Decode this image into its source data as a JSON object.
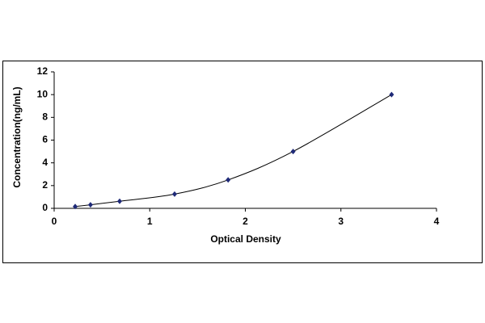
{
  "chart_data": {
    "type": "scatter",
    "x_label": "Optical Density",
    "y_label": "Concentration(ng/mL)",
    "series": [
      {
        "color": "#1f2a78",
        "line_color": "#000000",
        "x": [
          0.22,
          0.38,
          0.685,
          1.26,
          1.82,
          2.5,
          3.53
        ],
        "values": [
          0.156,
          0.312,
          0.625,
          1.25,
          2.5,
          5,
          10
        ]
      }
    ],
    "line": true,
    "smooth": true,
    "grid": false,
    "xlim": [
      0,
      4
    ],
    "xticks": [
      0,
      1,
      2,
      3,
      4
    ],
    "ylim": [
      0,
      12
    ],
    "yticks": [
      0,
      2,
      4,
      6,
      8,
      10,
      12
    ]
  }
}
